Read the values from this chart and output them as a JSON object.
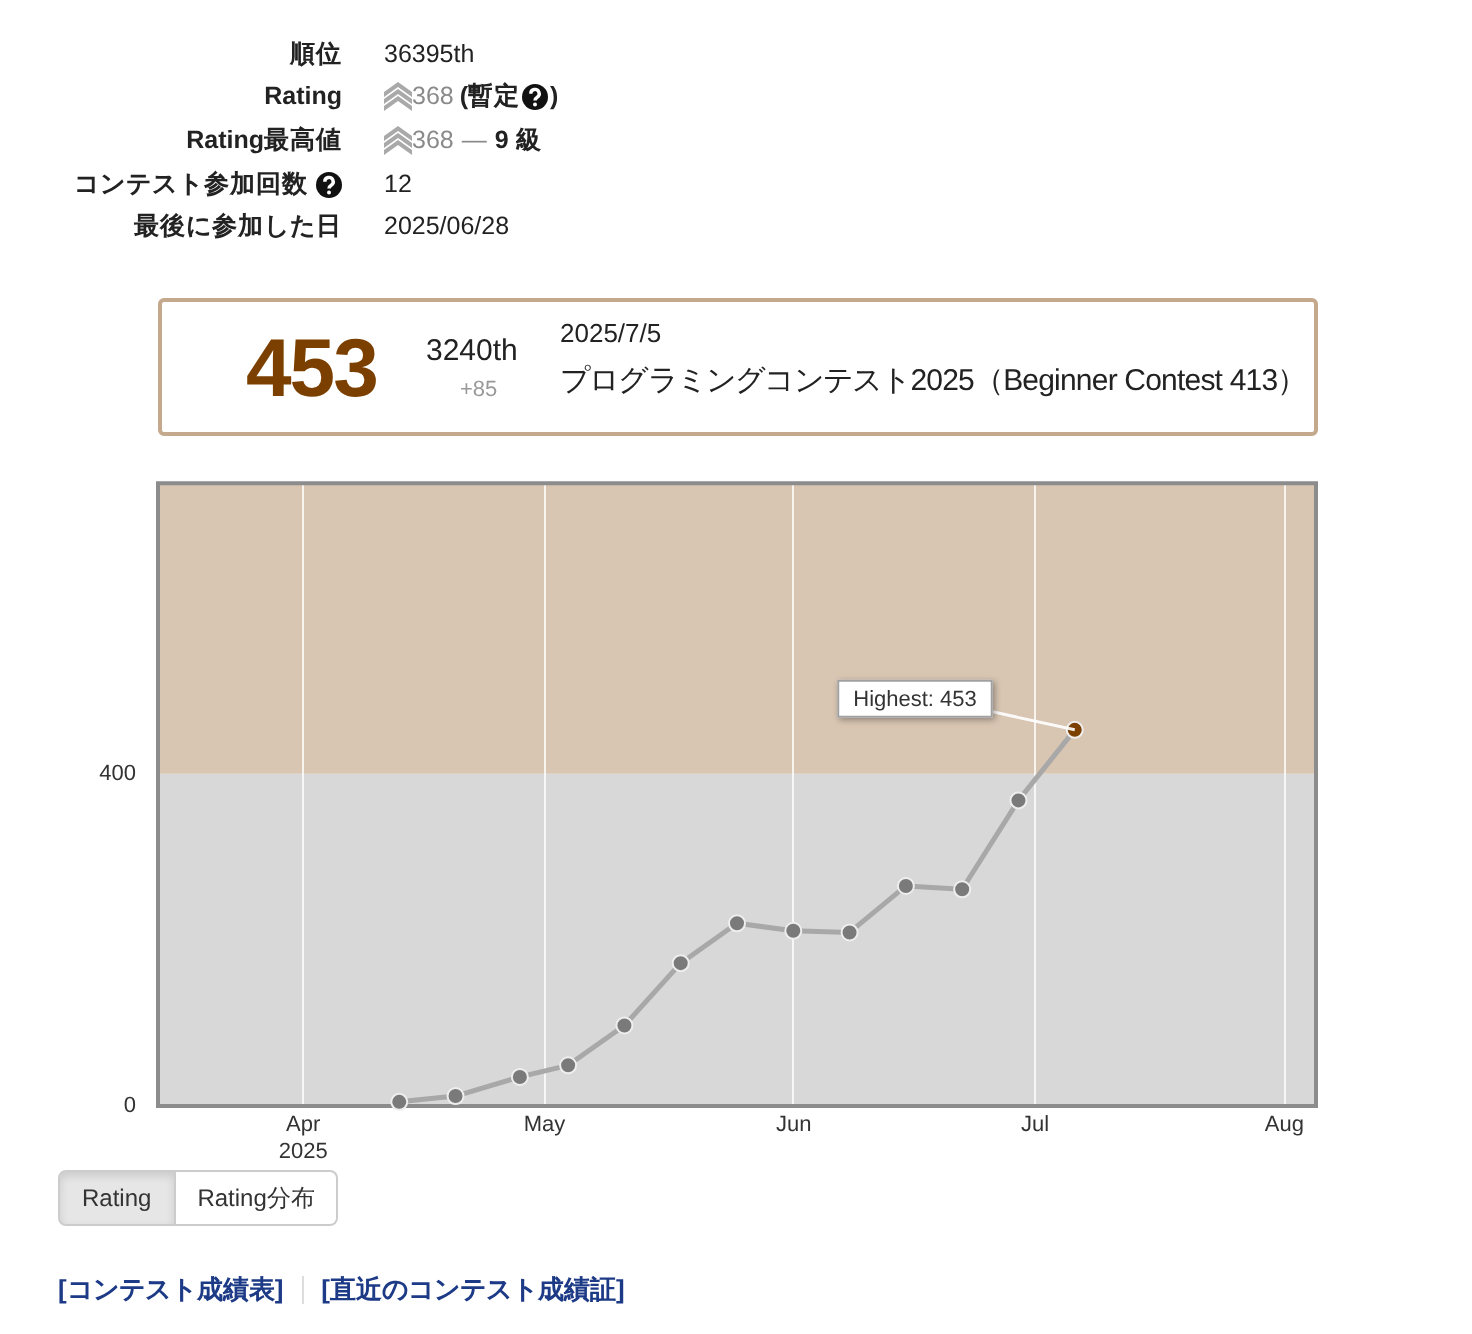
{
  "chart_data": {
    "type": "line",
    "x": [
      "2025-04-12T22:40",
      "2025-04-19T22:40",
      "2025-04-27T22:40",
      "2025-05-03T22:40",
      "2025-05-10T22:40",
      "2025-05-17T22:40",
      "2025-05-24T22:40",
      "2025-05-31T22:40",
      "2025-06-07T22:40",
      "2025-06-14T22:40",
      "2025-06-21T22:40",
      "2025-06-28T22:40",
      "2025-07-05T22:40"
    ],
    "series": [
      {
        "color": "#a8a8a8",
        "colors": [
          "#7a7a7a",
          "#7a7a7a",
          "#7a7a7a",
          "#7a7a7a",
          "#7a7a7a",
          "#7a7a7a",
          "#7a7a7a",
          "#7a7a7a",
          "#7a7a7a",
          "#7a7a7a",
          "#7a7a7a",
          "#7a7a7a",
          "#7b3f00"
        ],
        "values": [
          5,
          12,
          35,
          49,
          97,
          172,
          220,
          211,
          209,
          265,
          261,
          368,
          453
        ]
      }
    ],
    "xlim": [
      "2025-03-13T22:40",
      "2025-08-04T22:40"
    ],
    "xticks": [
      {
        "value": "2025-04-01",
        "label": "Apr\n2025"
      },
      {
        "value": "2025-05-01",
        "label": "May"
      },
      {
        "value": "2025-06-01",
        "label": "Jun"
      },
      {
        "value": "2025-07-01",
        "label": "Jul"
      },
      {
        "value": "2025-08-01",
        "label": "Aug"
      }
    ],
    "ylim": [
      0,
      750
    ],
    "yticks": [
      0,
      400
    ],
    "bands": [
      {
        "axis": "y",
        "from": 0,
        "to": 400,
        "color": "#d8d8d8"
      },
      {
        "axis": "y",
        "from": 400,
        "to": 750,
        "color": "#d8c5b2"
      }
    ],
    "grid": "x",
    "legend": false,
    "marker": "circle",
    "annotations": [
      "順位",
      "36395th",
      "Rating",
      "368",
      "(暫定",
      ")",
      "Rating最高値",
      "368",
      "—",
      "9 級",
      "コンテスト参加回数",
      "12",
      "最後に参加した日",
      "2025/06/28",
      "453",
      "3240th",
      "+85",
      "2025/7/5",
      "プログラミングコンテスト2025（Beginner Contest 413）",
      {
        "text": "Highest: 453",
        "x": "2025-07-05T22:40",
        "y": 453
      },
      "Rating",
      "Rating分布",
      "[コンテスト成績表]",
      "[直近のコンテスト成績証]"
    ]
  }
}
